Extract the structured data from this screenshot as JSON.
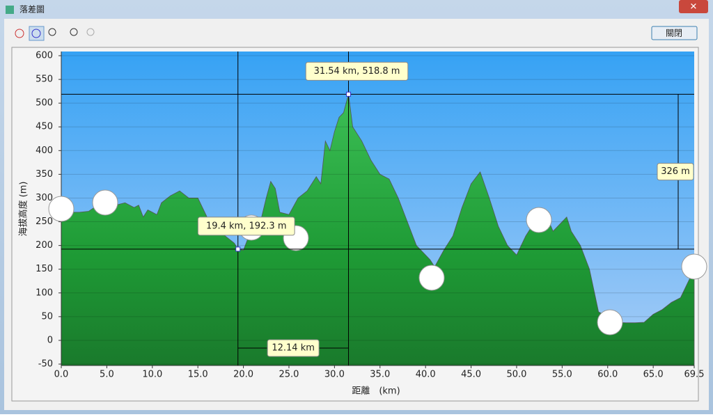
{
  "window": {
    "title": "落差圖",
    "close_button": "關閉"
  },
  "chart_data": {
    "type": "area",
    "ylabel": "海拔高度 (m)",
    "xlabel": "距離　(km)",
    "x": [
      0,
      1,
      2,
      3,
      4,
      5,
      6,
      7,
      8,
      8.5,
      9,
      9.5,
      10,
      10.5,
      11,
      12,
      13,
      14,
      15,
      15.5,
      16,
      17,
      18,
      19,
      19.4,
      20,
      20.5,
      21,
      22,
      22.5,
      23,
      23.5,
      24,
      25,
      26,
      27,
      28,
      28.5,
      29,
      29.5,
      30,
      30.5,
      31,
      31.54,
      32,
      33,
      34,
      35,
      36,
      37,
      38,
      39,
      40,
      40.5,
      41,
      42,
      43,
      44,
      45,
      46,
      47,
      48,
      49,
      50,
      51,
      52,
      52.5,
      53,
      54,
      55,
      55.5,
      56,
      57,
      58,
      59,
      60,
      61,
      62,
      63,
      64,
      65,
      66,
      67,
      68,
      69,
      69.5
    ],
    "series": [
      {
        "name": "海拔高度",
        "color": "#22a03a",
        "values": [
          270,
          270,
          270,
          272,
          285,
          290,
          285,
          290,
          280,
          285,
          260,
          275,
          270,
          265,
          290,
          305,
          315,
          300,
          300,
          280,
          260,
          240,
          220,
          205,
          192.3,
          190,
          215,
          245,
          260,
          300,
          335,
          320,
          270,
          265,
          300,
          315,
          345,
          330,
          420,
          400,
          440,
          470,
          480,
          518.8,
          450,
          420,
          380,
          350,
          340,
          300,
          250,
          200,
          180,
          170,
          155,
          190,
          220,
          280,
          330,
          355,
          300,
          240,
          200,
          180,
          220,
          250,
          280,
          275,
          230,
          250,
          260,
          230,
          200,
          150,
          60,
          50,
          38,
          37,
          37,
          38,
          55,
          65,
          80,
          90,
          130,
          140
        ]
      }
    ],
    "xlim": [
      0,
      69.5
    ],
    "ylim": [
      -50,
      600
    ],
    "xticks": [
      {
        "value": 0,
        "label": "0.0"
      },
      {
        "value": 5,
        "label": "5.0"
      },
      {
        "value": 10,
        "label": "10.0"
      },
      {
        "value": 15,
        "label": "15.0"
      },
      {
        "value": 20,
        "label": "20.0"
      },
      {
        "value": 25,
        "label": "25.0"
      },
      {
        "value": 30,
        "label": "30.0"
      },
      {
        "value": 35,
        "label": "35.0"
      },
      {
        "value": 40,
        "label": "40.0"
      },
      {
        "value": 45,
        "label": "45.0"
      },
      {
        "value": 50,
        "label": "50.0"
      },
      {
        "value": 55,
        "label": "55.0"
      },
      {
        "value": 60,
        "label": "60.0"
      },
      {
        "value": 65,
        "label": "65.0"
      },
      69.5
    ],
    "yticks": [
      -50,
      0,
      50,
      100,
      150,
      200,
      250,
      300,
      350,
      400,
      450,
      500,
      550,
      600
    ],
    "grid": true,
    "cursors": [
      {
        "x": 19.4,
        "y": 192.3,
        "label": "19.4 km, 192.3 m"
      },
      {
        "x": 31.54,
        "y": 518.8,
        "label": "31.54 km, 518.8 m"
      }
    ],
    "elevation_difference": "326 m",
    "distance_difference": "12.14 km"
  }
}
